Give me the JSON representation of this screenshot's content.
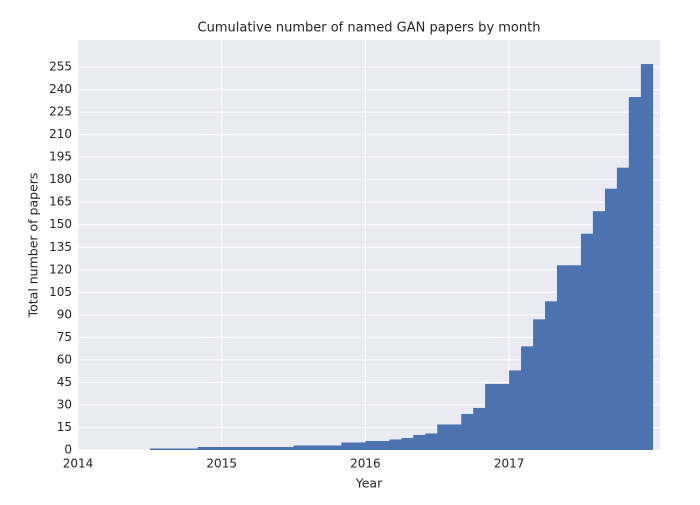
{
  "chart_data": {
    "type": "histogram",
    "title": "Cumulative number of named GAN papers by month",
    "x_label": "Year",
    "y_label": "Total number of papers",
    "bins": [
      2014.5,
      2014.583,
      2014.667,
      2014.75,
      2014.833,
      2014.917,
      2015,
      2015.083,
      2015.167,
      2015.25,
      2015.333,
      2015.417,
      2015.5,
      2015.583,
      2015.667,
      2015.75,
      2015.833,
      2015.917,
      2016,
      2016.083,
      2016.167,
      2016.25,
      2016.333,
      2016.417,
      2016.5,
      2016.583,
      2016.667,
      2016.75,
      2016.833,
      2016.917,
      2017,
      2017.083,
      2017.167,
      2017.25,
      2017.333,
      2017.417,
      2017.5,
      2017.583,
      2017.667,
      2017.75,
      2017.833,
      2017.917,
      2018
    ],
    "values": [
      1,
      1,
      1,
      1,
      2,
      2,
      2,
      2,
      2,
      2,
      2,
      2,
      3,
      3,
      3,
      3,
      5,
      5,
      6,
      6,
      7,
      8,
      10,
      11,
      17,
      17,
      24,
      28,
      44,
      44,
      53,
      69,
      87,
      99,
      123,
      123,
      144,
      159,
      174,
      188,
      235,
      257
    ],
    "color": "#4c72b0",
    "xlim": [
      2014,
      2018.05
    ],
    "xticks": [
      2014,
      2015,
      2016,
      2017
    ],
    "ylim": [
      0,
      273
    ],
    "yticks": [
      0,
      15,
      30,
      45,
      60,
      75,
      90,
      105,
      120,
      135,
      150,
      165,
      180,
      195,
      210,
      225,
      240,
      255
    ],
    "grid": true
  }
}
